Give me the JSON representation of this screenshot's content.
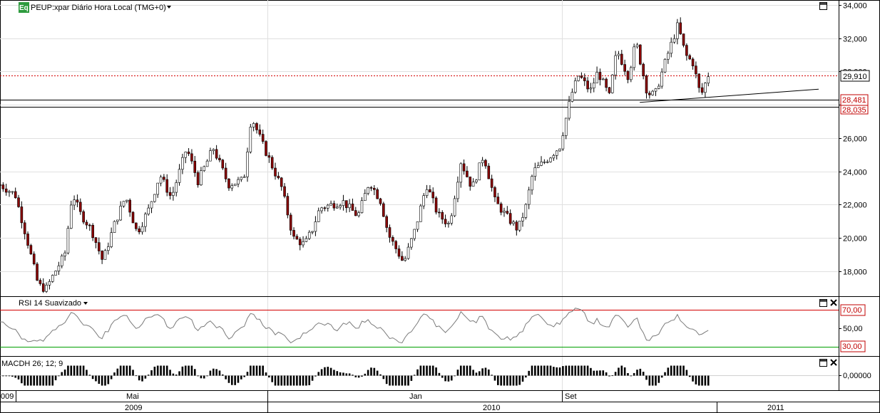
{
  "header": {
    "logo_text": "Eq",
    "symbol_title": "PEUP:xpar Diário Hora Local (TMG+0)"
  },
  "colors": {
    "up": "#000000",
    "down": "#8b0000",
    "red_line": "#d40000",
    "green_line": "#00a000",
    "grid": "#e0e0e0",
    "badge_red": "#c00000"
  },
  "chart_data": [
    {
      "type": "candlestick",
      "ylim": [
        16500,
        34300
      ],
      "y_ticks": [
        "18,000",
        "20,000",
        "22,000",
        "24,000",
        "26,000",
        "28,000",
        "30,000",
        "32,000",
        "34,000"
      ],
      "last_price_label": "29,910",
      "last_price": 29910,
      "horizontal_levels": [
        {
          "value": 28481,
          "label": "28,481"
        },
        {
          "value": 28035,
          "label": "28,035"
        }
      ],
      "trendline": {
        "from": [
          0.5,
          28150
        ],
        "to": [
          0.93,
          28600
        ]
      },
      "x_labels": {
        "months": [
          "009",
          "Mai",
          "Jan",
          "Set"
        ],
        "years": [
          "2009",
          "2010",
          "2011"
        ]
      },
      "anchors": [
        [
          0,
          23200
        ],
        [
          0.02,
          22600
        ],
        [
          0.035,
          20000
        ],
        [
          0.05,
          17200
        ],
        [
          0.06,
          16900
        ],
        [
          0.075,
          18200
        ],
        [
          0.085,
          19000
        ],
        [
          0.095,
          22700
        ],
        [
          0.105,
          21500
        ],
        [
          0.12,
          20500
        ],
        [
          0.135,
          18600
        ],
        [
          0.15,
          20800
        ],
        [
          0.165,
          22500
        ],
        [
          0.18,
          20300
        ],
        [
          0.195,
          21700
        ],
        [
          0.21,
          23800
        ],
        [
          0.225,
          22400
        ],
        [
          0.245,
          25400
        ],
        [
          0.26,
          23400
        ],
        [
          0.28,
          25400
        ],
        [
          0.3,
          23200
        ],
        [
          0.32,
          23500
        ],
        [
          0.33,
          27300
        ],
        [
          0.345,
          25600
        ],
        [
          0.37,
          23000
        ],
        [
          0.385,
          20000
        ],
        [
          0.4,
          19600
        ],
        [
          0.41,
          20500
        ],
        [
          0.42,
          21800
        ],
        [
          0.45,
          22200
        ],
        [
          0.47,
          21300
        ],
        [
          0.485,
          23400
        ],
        [
          0.5,
          22200
        ],
        [
          0.51,
          20200
        ],
        [
          0.53,
          18500
        ],
        [
          0.545,
          20500
        ],
        [
          0.56,
          23200
        ],
        [
          0.575,
          21400
        ],
        [
          0.59,
          20800
        ],
        [
          0.605,
          24600
        ],
        [
          0.62,
          23000
        ],
        [
          0.635,
          25000
        ],
        [
          0.65,
          22200
        ],
        [
          0.665,
          21300
        ],
        [
          0.68,
          20500
        ],
        [
          0.69,
          21800
        ],
        [
          0.7,
          24000
        ],
        [
          0.72,
          24800
        ],
        [
          0.735,
          25500
        ],
        [
          0.75,
          28600
        ],
        [
          0.76,
          29800
        ],
        [
          0.775,
          28800
        ],
        [
          0.785,
          30000
        ],
        [
          0.8,
          28500
        ],
        [
          0.81,
          31300
        ],
        [
          0.825,
          29700
        ],
        [
          0.835,
          31800
        ],
        [
          0.85,
          28700
        ],
        [
          0.86,
          28600
        ],
        [
          0.875,
          30800
        ],
        [
          0.89,
          32800
        ],
        [
          0.9,
          31000
        ],
        [
          0.91,
          30500
        ],
        [
          0.92,
          28500
        ],
        [
          0.93,
          29800
        ]
      ],
      "candle_count": 230,
      "seed": 7
    },
    {
      "type": "line",
      "title": "RSI 14 Suavizado",
      "ylim": [
        24,
        78
      ],
      "levels": [
        {
          "value": 70,
          "label": "70,00",
          "color": "#d40000"
        },
        {
          "value": 30,
          "label": "30,00",
          "color": "#00a000"
        }
      ],
      "y_ticks": [
        "50,00"
      ],
      "seed": 11
    },
    {
      "type": "bar",
      "title": "MACDH 26; 12; 9",
      "y_ticks": [
        "0,00000"
      ],
      "seed": 19
    }
  ]
}
